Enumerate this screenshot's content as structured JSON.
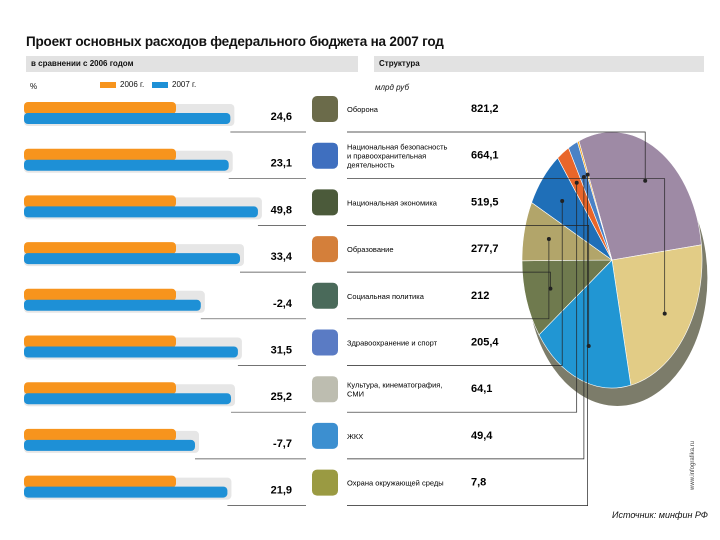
{
  "title": "Проект основных расходов федерального бюджета на 2007 год",
  "subtitle": "в сравнении с 2006 годом",
  "structure_label": "Структура",
  "pct_unit": "%",
  "value_unit": "млрд руб",
  "source": "Источник: минфин РФ",
  "side_credit": "www.infografika.ru",
  "colors": {
    "y2006": "#f7941d",
    "y2007": "#1e90d6",
    "pie": [
      "#9e8aa5",
      "#e2cc86",
      "#2196d3",
      "#6f7a4e",
      "#b2a56a",
      "#1f6fb8",
      "#e9662a",
      "#4a82c6",
      "#f3a41c"
    ]
  },
  "chart_data": {
    "type": "bar",
    "legend": [
      "2006 г.",
      "2007 г."
    ],
    "categories": [
      "Оборона",
      "Национальная безопасность и правоохранительная деятельность",
      "Национальная экономика",
      "Образование",
      "Социальная политика",
      "Здравоохранение и спорт",
      "Культура, кинематография, СМИ",
      "ЖКХ",
      "Охрана окружающей среды"
    ],
    "growth_pct": [
      "24,6",
      "23,1",
      "49,8",
      "33,4",
      "-2,4",
      "31,5",
      "25,2",
      "-7,7",
      "21,9"
    ],
    "values_2007": [
      "821,2",
      "664,1",
      "519,5",
      "277,7",
      "212",
      "205,4",
      "64,1",
      "49,4",
      "7,8"
    ],
    "growth_values": [
      24.6,
      23.1,
      49.8,
      33.4,
      -2.4,
      31.5,
      25.2,
      -7.7,
      21.9
    ],
    "pie_values": [
      821.2,
      664.1,
      519.5,
      277.7,
      212,
      205.4,
      64.1,
      49.4,
      7.8
    ],
    "icons": [
      "tank-icon",
      "police-car-icon",
      "factory-icon",
      "student-icon",
      "elderly-person-icon",
      "ambulance-icon",
      "discobolus-statue-icon",
      "bathtub-icon",
      "tree-icon"
    ]
  }
}
